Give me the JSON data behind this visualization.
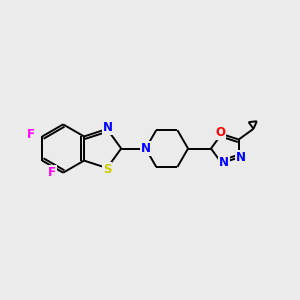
{
  "bg_color": "#ebebeb",
  "bond_color": "#000000",
  "atom_colors": {
    "N": "#0000ff",
    "S": "#cccc00",
    "O": "#ff0000",
    "F": "#ff00ff"
  },
  "figsize": [
    3.0,
    3.0
  ],
  "dpi": 100
}
